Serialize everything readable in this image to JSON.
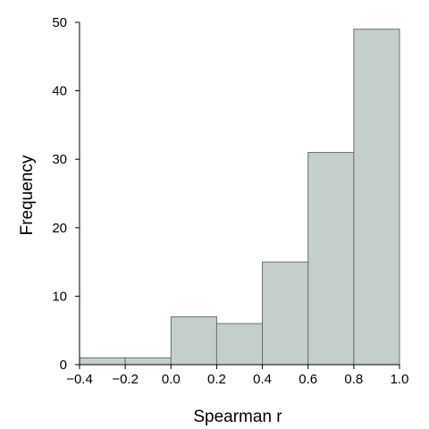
{
  "chart_data": {
    "type": "bar",
    "bins": [
      {
        "x0": -0.4,
        "x1": -0.2,
        "value": 1
      },
      {
        "x0": -0.2,
        "x1": 0.0,
        "value": 1
      },
      {
        "x0": 0.0,
        "x1": 0.2,
        "value": 7
      },
      {
        "x0": 0.2,
        "x1": 0.4,
        "value": 6
      },
      {
        "x0": 0.4,
        "x1": 0.6,
        "value": 15
      },
      {
        "x0": 0.6,
        "x1": 0.8,
        "value": 31
      },
      {
        "x0": 0.8,
        "x1": 1.0,
        "value": 49
      }
    ],
    "xlabel": "Spearman r",
    "ylabel": "Frequency",
    "xlim": [
      -0.4,
      1.0
    ],
    "ylim": [
      0,
      50
    ],
    "xticks": [
      {
        "value": -0.4,
        "label": "−0.4"
      },
      {
        "value": -0.2,
        "label": "−0.2"
      },
      {
        "value": 0.0,
        "label": "0.0"
      },
      {
        "value": 0.2,
        "label": "0.2"
      },
      {
        "value": 0.4,
        "label": "0.4"
      },
      {
        "value": 0.6,
        "label": "0.6"
      },
      {
        "value": 0.8,
        "label": "0.8"
      },
      {
        "value": 1.0,
        "label": "1.0"
      }
    ],
    "yticks": [
      {
        "value": 0,
        "label": "0"
      },
      {
        "value": 10,
        "label": "10"
      },
      {
        "value": 20,
        "label": "20"
      },
      {
        "value": 30,
        "label": "30"
      },
      {
        "value": 40,
        "label": "40"
      },
      {
        "value": 50,
        "label": "50"
      }
    ],
    "bar_color": "#c5cfca",
    "edge_color": "#6e6e6e",
    "grid": false
  }
}
